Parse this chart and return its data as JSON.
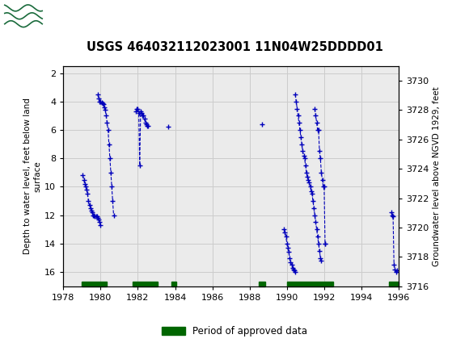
{
  "title": "USGS 464032112023001 11N04W25DDDD01",
  "ylabel_left": "Depth to water level, feet below land\nsurface",
  "ylabel_right": "Groundwater level above NGVD 1929, feet",
  "xlim": [
    1978,
    1996
  ],
  "ylim_left": [
    17.0,
    1.5
  ],
  "ylim_right": [
    3716,
    3731
  ],
  "xticks": [
    1978,
    1980,
    1982,
    1984,
    1986,
    1988,
    1990,
    1992,
    1994,
    1996
  ],
  "yticks_left": [
    2,
    4,
    6,
    8,
    10,
    12,
    14,
    16
  ],
  "yticks_right": [
    3716,
    3718,
    3720,
    3722,
    3724,
    3726,
    3728,
    3730
  ],
  "header_color": "#1a6b3c",
  "data_color": "#0000bb",
  "approved_color": "#006600",
  "background_color": "#ffffff",
  "plot_bg_color": "#ebebeb",
  "grid_color": "#cccccc",
  "segments": [
    [
      [
        1979.05,
        9.2
      ],
      [
        1979.1,
        9.5
      ],
      [
        1979.15,
        9.8
      ],
      [
        1979.2,
        10.0
      ],
      [
        1979.25,
        10.2
      ],
      [
        1979.3,
        10.5
      ],
      [
        1979.35,
        11.0
      ],
      [
        1979.4,
        11.3
      ],
      [
        1979.45,
        11.5
      ],
      [
        1979.5,
        11.7
      ],
      [
        1979.55,
        11.8
      ],
      [
        1979.6,
        12.0
      ],
      [
        1979.65,
        12.0
      ],
      [
        1979.7,
        12.05
      ],
      [
        1979.75,
        12.1
      ],
      [
        1979.8,
        12.1
      ],
      [
        1979.85,
        12.2
      ],
      [
        1979.9,
        12.3
      ],
      [
        1979.95,
        12.5
      ],
      [
        1980.0,
        12.7
      ]
    ],
    [
      [
        1979.85,
        3.5
      ],
      [
        1979.9,
        3.8
      ],
      [
        1979.95,
        4.0
      ],
      [
        1980.0,
        4.0
      ],
      [
        1980.05,
        4.05
      ],
      [
        1980.1,
        4.1
      ],
      [
        1980.15,
        4.2
      ],
      [
        1980.2,
        4.4
      ],
      [
        1980.25,
        4.6
      ],
      [
        1980.3,
        5.0
      ],
      [
        1980.35,
        5.5
      ],
      [
        1980.4,
        6.0
      ],
      [
        1980.45,
        7.0
      ],
      [
        1980.5,
        8.0
      ],
      [
        1980.55,
        9.0
      ],
      [
        1980.6,
        10.0
      ],
      [
        1980.65,
        11.0
      ],
      [
        1980.7,
        12.0
      ]
    ],
    [
      [
        1981.9,
        4.7
      ],
      [
        1981.95,
        4.5
      ],
      [
        1982.0,
        4.5
      ],
      [
        1982.05,
        4.8
      ],
      [
        1982.1,
        8.5
      ],
      [
        1982.15,
        4.7
      ],
      [
        1982.2,
        4.8
      ],
      [
        1982.25,
        5.0
      ],
      [
        1982.3,
        5.0
      ],
      [
        1982.35,
        5.2
      ],
      [
        1982.4,
        5.5
      ],
      [
        1982.45,
        5.6
      ],
      [
        1982.5,
        5.7
      ],
      [
        1982.55,
        5.7
      ]
    ],
    [
      [
        1983.65,
        5.8
      ]
    ],
    [
      [
        1988.65,
        5.6
      ]
    ],
    [
      [
        1989.85,
        13.0
      ],
      [
        1989.9,
        13.2
      ],
      [
        1989.95,
        13.5
      ],
      [
        1990.0,
        14.0
      ],
      [
        1990.05,
        14.3
      ],
      [
        1990.1,
        14.6
      ],
      [
        1990.15,
        15.0
      ],
      [
        1990.2,
        15.3
      ],
      [
        1990.25,
        15.5
      ],
      [
        1990.3,
        15.7
      ],
      [
        1990.35,
        15.8
      ],
      [
        1990.4,
        15.9
      ],
      [
        1990.45,
        16.0
      ]
    ],
    [
      [
        1990.45,
        3.5
      ],
      [
        1990.5,
        4.0
      ],
      [
        1990.55,
        4.5
      ],
      [
        1990.6,
        5.0
      ],
      [
        1990.65,
        5.5
      ],
      [
        1990.7,
        6.0
      ],
      [
        1990.75,
        6.5
      ],
      [
        1990.8,
        7.0
      ],
      [
        1990.85,
        7.5
      ],
      [
        1990.9,
        7.8
      ],
      [
        1990.95,
        8.0
      ],
      [
        1991.0,
        8.5
      ],
      [
        1991.05,
        9.0
      ],
      [
        1991.1,
        9.3
      ],
      [
        1991.15,
        9.5
      ],
      [
        1991.2,
        9.7
      ],
      [
        1991.25,
        10.0
      ],
      [
        1991.3,
        10.3
      ],
      [
        1991.35,
        10.5
      ],
      [
        1991.4,
        11.0
      ],
      [
        1991.45,
        11.5
      ],
      [
        1991.5,
        12.0
      ],
      [
        1991.55,
        12.5
      ],
      [
        1991.6,
        13.0
      ],
      [
        1991.65,
        13.5
      ],
      [
        1991.7,
        14.0
      ],
      [
        1991.75,
        14.5
      ],
      [
        1991.8,
        15.0
      ],
      [
        1991.85,
        15.2
      ]
    ],
    [
      [
        1991.5,
        4.5
      ],
      [
        1991.55,
        5.0
      ],
      [
        1991.6,
        5.5
      ],
      [
        1991.65,
        6.0
      ],
      [
        1991.7,
        6.0
      ],
      [
        1991.75,
        7.5
      ],
      [
        1991.8,
        8.0
      ],
      [
        1991.85,
        9.0
      ],
      [
        1991.9,
        9.5
      ],
      [
        1991.95,
        10.0
      ],
      [
        1992.0,
        10.0
      ],
      [
        1992.05,
        14.0
      ]
    ],
    [
      [
        1992.05,
        14.0
      ]
    ],
    [
      [
        1995.6,
        11.8
      ],
      [
        1995.65,
        12.0
      ],
      [
        1995.7,
        12.1
      ],
      [
        1995.75,
        15.5
      ],
      [
        1995.8,
        15.8
      ],
      [
        1995.85,
        16.0
      ],
      [
        1995.9,
        15.9
      ]
    ]
  ],
  "approved_bars": [
    [
      1979.0,
      1980.35
    ],
    [
      1981.7,
      1983.05
    ],
    [
      1983.8,
      1984.05
    ],
    [
      1988.5,
      1988.85
    ],
    [
      1990.0,
      1992.5
    ],
    [
      1995.5,
      1996.0
    ]
  ],
  "legend_label": "Period of approved data"
}
